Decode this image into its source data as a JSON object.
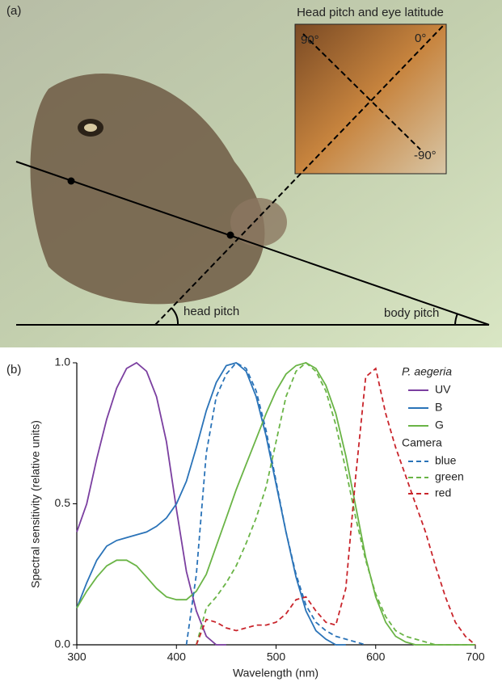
{
  "panel_a": {
    "label": "(a)",
    "inset_title": "Head pitch and eye latitude",
    "angle_top_left": "90°",
    "angle_top_right": "0°",
    "angle_bottom": "-90°",
    "head_pitch": "head pitch",
    "body_pitch": "body pitch"
  },
  "chart_data": {
    "type": "line",
    "panel_label": "(b)",
    "x_label": "Wavelength (nm)",
    "y_label": "Spectral sensitivity (relative units)",
    "x": [
      300,
      310,
      320,
      330,
      340,
      350,
      360,
      370,
      380,
      390,
      400,
      410,
      420,
      430,
      440,
      450,
      460,
      470,
      480,
      490,
      500,
      510,
      520,
      530,
      540,
      550,
      560,
      570,
      580,
      590,
      600,
      610,
      620,
      630,
      640,
      650,
      660,
      670,
      680,
      690,
      700
    ],
    "xlim": [
      300,
      700
    ],
    "xticks": [
      300,
      400,
      500,
      600,
      700
    ],
    "ylim": [
      0,
      1
    ],
    "yticks": [
      {
        "value": 0,
        "label": "0.0"
      },
      {
        "value": 0.5,
        "label": "0.5"
      },
      {
        "value": 1,
        "label": "1.0"
      }
    ],
    "series_groups": [
      {
        "title": "P. aegeria",
        "series": [
          {
            "name": "UV",
            "color": "#7b3fa0",
            "linestyle": "solid",
            "values": [
              0.4,
              0.5,
              0.66,
              0.8,
              0.91,
              0.98,
              1.0,
              0.97,
              0.88,
              0.72,
              0.48,
              0.26,
              0.12,
              0.03,
              0,
              0,
              null,
              null,
              null,
              null,
              null,
              null,
              null,
              null,
              null,
              null,
              null,
              null,
              null,
              null,
              null,
              null,
              null,
              null,
              null,
              null,
              null,
              null,
              null,
              null,
              null
            ]
          },
          {
            "name": "B",
            "color": "#2a73b8",
            "linestyle": "solid",
            "values": [
              0.13,
              0.22,
              0.3,
              0.35,
              0.37,
              0.38,
              0.39,
              0.4,
              0.42,
              0.45,
              0.5,
              0.58,
              0.7,
              0.83,
              0.93,
              0.99,
              1.0,
              0.97,
              0.88,
              0.74,
              0.57,
              0.4,
              0.24,
              0.12,
              0.05,
              0.02,
              0,
              0,
              null,
              null,
              null,
              null,
              null,
              null,
              null,
              null,
              null,
              null,
              null,
              null,
              null
            ]
          },
          {
            "name": "G",
            "color": "#6ab446",
            "linestyle": "solid",
            "values": [
              0.13,
              0.19,
              0.24,
              0.28,
              0.3,
              0.3,
              0.28,
              0.24,
              0.2,
              0.17,
              0.16,
              0.16,
              0.19,
              0.25,
              0.35,
              0.45,
              0.55,
              0.64,
              0.73,
              0.82,
              0.9,
              0.96,
              0.99,
              1.0,
              0.98,
              0.92,
              0.82,
              0.67,
              0.49,
              0.31,
              0.17,
              0.08,
              0.03,
              0.01,
              0,
              0,
              0,
              0,
              0,
              0,
              0
            ]
          }
        ]
      },
      {
        "title": "Camera",
        "series": [
          {
            "name": "blue",
            "color": "#2a73b8",
            "linestyle": "dashed",
            "values": [
              null,
              null,
              null,
              null,
              null,
              null,
              null,
              null,
              null,
              null,
              null,
              0,
              0.25,
              0.68,
              0.88,
              0.96,
              1.0,
              0.98,
              0.9,
              0.76,
              0.58,
              0.4,
              0.25,
              0.14,
              0.08,
              0.05,
              0.03,
              0.02,
              0.01,
              0,
              null,
              null,
              null,
              null,
              null,
              null,
              null,
              null,
              null,
              null,
              null
            ]
          },
          {
            "name": "green",
            "color": "#6ab446",
            "linestyle": "dashed",
            "values": [
              null,
              null,
              null,
              null,
              null,
              null,
              null,
              null,
              null,
              null,
              null,
              null,
              0,
              0.13,
              0.17,
              0.22,
              0.28,
              0.36,
              0.45,
              0.56,
              0.72,
              0.88,
              0.97,
              1.0,
              0.97,
              0.9,
              0.78,
              0.62,
              0.45,
              0.3,
              0.18,
              0.1,
              0.05,
              0.03,
              0.02,
              0.01,
              0,
              0,
              0,
              0,
              0
            ]
          },
          {
            "name": "red",
            "color": "#c9252c",
            "linestyle": "dashed",
            "values": [
              null,
              null,
              null,
              null,
              null,
              null,
              null,
              null,
              null,
              null,
              null,
              null,
              0,
              0.09,
              0.08,
              0.06,
              0.05,
              0.06,
              0.07,
              0.07,
              0.08,
              0.11,
              0.16,
              0.17,
              0.12,
              0.08,
              0.07,
              0.2,
              0.6,
              0.95,
              0.98,
              0.82,
              0.7,
              0.6,
              0.5,
              0.4,
              0.28,
              0.17,
              0.08,
              0.03,
              0
            ]
          }
        ]
      }
    ]
  }
}
